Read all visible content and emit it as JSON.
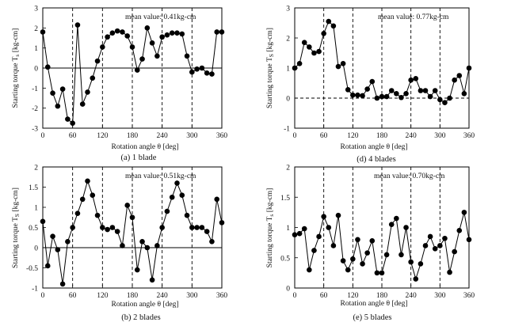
{
  "chart_data": [
    {
      "type": "line",
      "caption": "(a)  1 blade",
      "annotation": "mean value: 0.41kg-cm",
      "xlabel": "Rotation angle  θ [deg]",
      "ylabel": "Starting torque T",
      "ylabel_sub": "s",
      "ylabel_unit": " [kg-cm]",
      "xlim": [
        0,
        360
      ],
      "ylim": [
        -3,
        3
      ],
      "xticks": [
        0,
        60,
        120,
        180,
        240,
        300,
        360
      ],
      "yticks": [
        -3,
        -2,
        -1,
        0,
        1,
        2,
        3
      ],
      "dashed_x": [
        60,
        120,
        180,
        240,
        300
      ],
      "zero_line": "solid",
      "series": [
        {
          "x": [
            0,
            10,
            20,
            30,
            40,
            50,
            60,
            70,
            80,
            90,
            100,
            110,
            120,
            130,
            140,
            150,
            160,
            170,
            180,
            190,
            200,
            210,
            220,
            230,
            240,
            250,
            260,
            270,
            280,
            290,
            300,
            310,
            320,
            330,
            340,
            350,
            360
          ],
          "y": [
            1.8,
            0.05,
            -1.25,
            -1.9,
            -1.05,
            -2.55,
            -2.75,
            2.15,
            -1.8,
            -1.2,
            -0.5,
            0.35,
            1.05,
            1.55,
            1.75,
            1.85,
            1.8,
            1.6,
            1.05,
            -0.1,
            0.45,
            2.0,
            1.25,
            0.6,
            1.55,
            1.65,
            1.75,
            1.75,
            1.7,
            0.6,
            -0.2,
            -0.05,
            0.0,
            -0.25,
            -0.3,
            1.8,
            1.8
          ]
        }
      ]
    },
    {
      "type": "line",
      "caption": "(d) 4 blades",
      "annotation": "mean value: 0.77kg-cm",
      "xlabel": "Rotation angle  θ [deg]",
      "ylabel": "Starting torque T",
      "ylabel_sub": "S",
      "ylabel_unit": " [kg-cm]",
      "xlim": [
        0,
        360
      ],
      "ylim": [
        -1,
        3
      ],
      "xticks": [
        0,
        60,
        120,
        180,
        240,
        300,
        360
      ],
      "yticks": [
        -1,
        0,
        1,
        2,
        3
      ],
      "dashed_x": [
        60,
        120,
        180,
        240,
        300
      ],
      "zero_line": "dashed",
      "series": [
        {
          "x": [
            0,
            10,
            20,
            30,
            40,
            50,
            60,
            70,
            80,
            90,
            100,
            110,
            120,
            130,
            140,
            150,
            160,
            170,
            180,
            190,
            200,
            210,
            220,
            230,
            240,
            250,
            260,
            270,
            280,
            290,
            300,
            310,
            320,
            330,
            340,
            350,
            360
          ],
          "y": [
            1.0,
            1.15,
            1.85,
            1.7,
            1.5,
            1.55,
            2.15,
            2.55,
            2.4,
            1.05,
            1.15,
            0.28,
            0.1,
            0.1,
            0.08,
            0.3,
            0.55,
            0.0,
            0.05,
            0.05,
            0.25,
            0.15,
            0.02,
            0.15,
            0.6,
            0.65,
            0.25,
            0.25,
            0.05,
            0.25,
            -0.05,
            -0.15,
            0.0,
            0.6,
            0.75,
            0.15,
            1.0
          ]
        }
      ]
    },
    {
      "type": "line",
      "caption": "(b) 2 blades",
      "annotation": "mean value: 0.51kg-cm",
      "xlabel": "Rotation angle  θ [deg]",
      "ylabel": "Starting torque T",
      "ylabel_sub": "S",
      "ylabel_unit": " [kg-cm]",
      "xlim": [
        0,
        360
      ],
      "ylim": [
        -1,
        2
      ],
      "xticks": [
        0,
        60,
        120,
        180,
        240,
        300,
        360
      ],
      "yticks": [
        -1,
        -0.5,
        0,
        0.5,
        1,
        1.5,
        2
      ],
      "dashed_x": [
        60,
        120,
        180,
        240,
        300
      ],
      "zero_line": "solid",
      "series": [
        {
          "x": [
            0,
            10,
            20,
            30,
            40,
            50,
            60,
            70,
            80,
            90,
            100,
            110,
            120,
            130,
            140,
            150,
            160,
            170,
            180,
            190,
            200,
            210,
            220,
            230,
            240,
            250,
            260,
            270,
            280,
            290,
            300,
            310,
            320,
            330,
            340,
            350,
            360
          ],
          "y": [
            0.65,
            -0.45,
            0.28,
            -0.05,
            -0.9,
            0.15,
            0.5,
            0.85,
            1.2,
            1.65,
            1.3,
            0.8,
            0.5,
            0.45,
            0.5,
            0.4,
            0.05,
            1.05,
            0.75,
            -0.55,
            0.15,
            0.0,
            -0.8,
            0.05,
            0.5,
            0.9,
            1.25,
            1.6,
            1.3,
            0.8,
            0.5,
            0.5,
            0.5,
            0.4,
            0.15,
            1.2,
            0.62
          ]
        }
      ]
    },
    {
      "type": "line",
      "caption": "(e) 5 blades",
      "annotation": "mean value: 0.70kg-cm",
      "xlabel": "Rotation angle  θ [deg]",
      "ylabel": "Starting torque T",
      "ylabel_sub": "s",
      "ylabel_unit": " [kg-cm]",
      "xlim": [
        0,
        360
      ],
      "ylim": [
        0,
        2
      ],
      "xticks": [
        0,
        60,
        120,
        180,
        240,
        300,
        360
      ],
      "yticks": [
        0,
        0.5,
        1,
        1.5,
        2
      ],
      "dashed_x": [
        60,
        120,
        180,
        240,
        300
      ],
      "zero_line": "none",
      "series": [
        {
          "x": [
            0,
            10,
            20,
            30,
            40,
            50,
            60,
            70,
            80,
            90,
            100,
            110,
            120,
            130,
            140,
            150,
            160,
            170,
            180,
            190,
            200,
            210,
            220,
            230,
            240,
            250,
            260,
            270,
            280,
            290,
            300,
            310,
            320,
            330,
            340,
            350,
            360
          ],
          "y": [
            0.88,
            0.9,
            0.98,
            0.3,
            0.62,
            0.85,
            1.18,
            1.0,
            0.7,
            1.2,
            0.45,
            0.3,
            0.48,
            0.8,
            0.4,
            0.58,
            0.78,
            0.25,
            0.25,
            0.55,
            1.05,
            1.15,
            0.55,
            1.0,
            0.43,
            0.15,
            0.4,
            0.7,
            0.85,
            0.65,
            0.7,
            0.82,
            0.26,
            0.6,
            0.95,
            1.25,
            0.8
          ]
        }
      ]
    }
  ]
}
